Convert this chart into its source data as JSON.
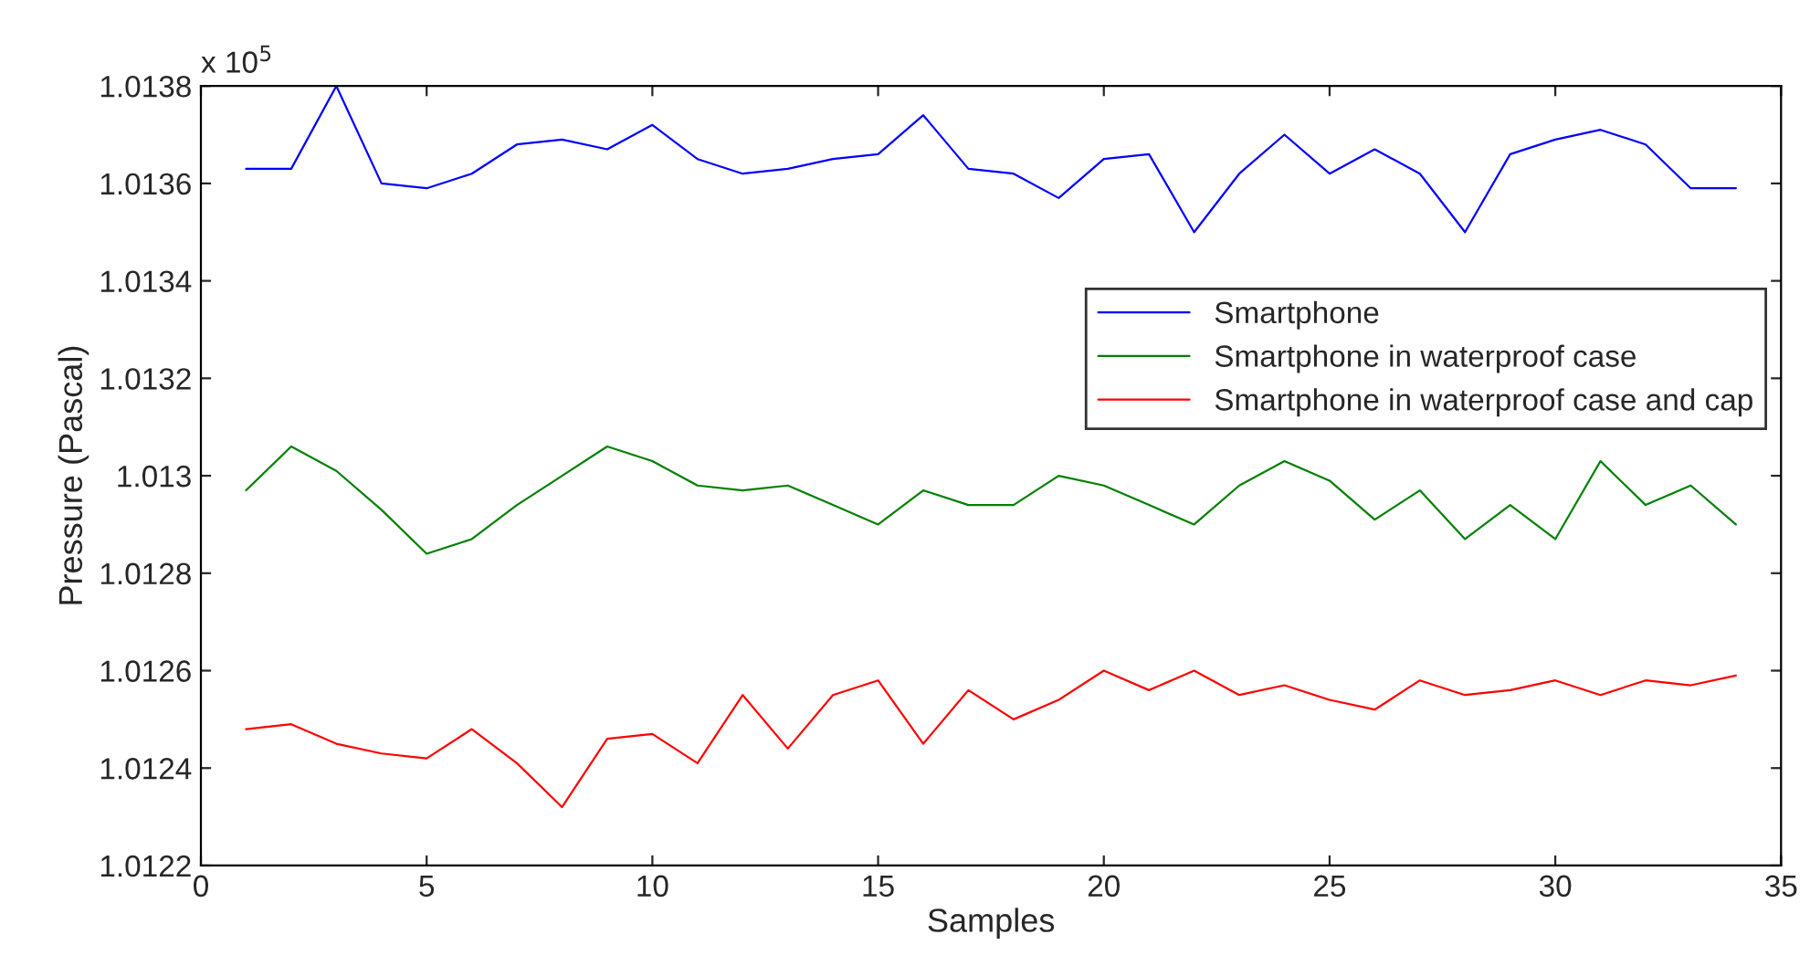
{
  "chart_data": {
    "type": "line",
    "xlabel": "Samples",
    "ylabel": "Pressure (Pascal)",
    "annotations": [
      "x 10$^{5}$"
    ],
    "x": [
      1,
      2,
      3,
      4,
      5,
      6,
      7,
      8,
      9,
      10,
      11,
      12,
      13,
      14,
      15,
      16,
      17,
      18,
      19,
      20,
      21,
      22,
      23,
      24,
      25,
      26,
      27,
      28,
      29,
      30,
      31,
      32,
      33,
      34
    ],
    "series": [
      {
        "name": "Smartphone",
        "color": "#0000ff",
        "values": [
          1.01363,
          1.01363,
          1.0138,
          1.0136,
          1.01359,
          1.01362,
          1.01368,
          1.01369,
          1.01367,
          1.01372,
          1.01365,
          1.01362,
          1.01363,
          1.01365,
          1.01366,
          1.01374,
          1.01363,
          1.01362,
          1.01357,
          1.01365,
          1.01366,
          1.0135,
          1.01362,
          1.0137,
          1.01362,
          1.01367,
          1.01362,
          1.0135,
          1.01366,
          1.01369,
          1.01371,
          1.01368,
          1.01359,
          1.01359
        ]
      },
      {
        "name": "Smartphone in waterproof case",
        "color": "#008000",
        "values": [
          1.01297,
          1.01306,
          1.01301,
          1.01293,
          1.01284,
          1.01287,
          1.01294,
          1.013,
          1.01306,
          1.01303,
          1.01298,
          1.01297,
          1.01298,
          1.01294,
          1.0129,
          1.01297,
          1.01294,
          1.01294,
          1.013,
          1.01298,
          1.01294,
          1.0129,
          1.01298,
          1.01303,
          1.01299,
          1.01291,
          1.01297,
          1.01287,
          1.01294,
          1.01287,
          1.01303,
          1.01294,
          1.01298,
          1.0129
        ]
      },
      {
        "name": "Smartphone in waterproof case and cap",
        "color": "#ff0000",
        "values": [
          1.01248,
          1.01249,
          1.01245,
          1.01243,
          1.01242,
          1.01248,
          1.01241,
          1.01232,
          1.01246,
          1.01247,
          1.01241,
          1.01255,
          1.01244,
          1.01255,
          1.01258,
          1.01245,
          1.01256,
          1.0125,
          1.01254,
          1.0126,
          1.01256,
          1.0126,
          1.01255,
          1.01257,
          1.01254,
          1.01252,
          1.01258,
          1.01255,
          1.01256,
          1.01258,
          1.01255,
          1.01258,
          1.01257,
          1.01259
        ]
      }
    ],
    "xlim": [
      0,
      35
    ],
    "xticks": [
      0,
      5,
      10,
      15,
      20,
      25,
      30,
      35
    ],
    "ylim": [
      1.0122,
      1.0138
    ],
    "yticks": [
      1.0122,
      1.0124,
      1.0126,
      1.0128,
      1.013,
      1.0132,
      1.0134,
      1.0136,
      1.0138
    ],
    "grid": false,
    "legend": "right",
    "marker": "none",
    "line_style": "solid"
  }
}
